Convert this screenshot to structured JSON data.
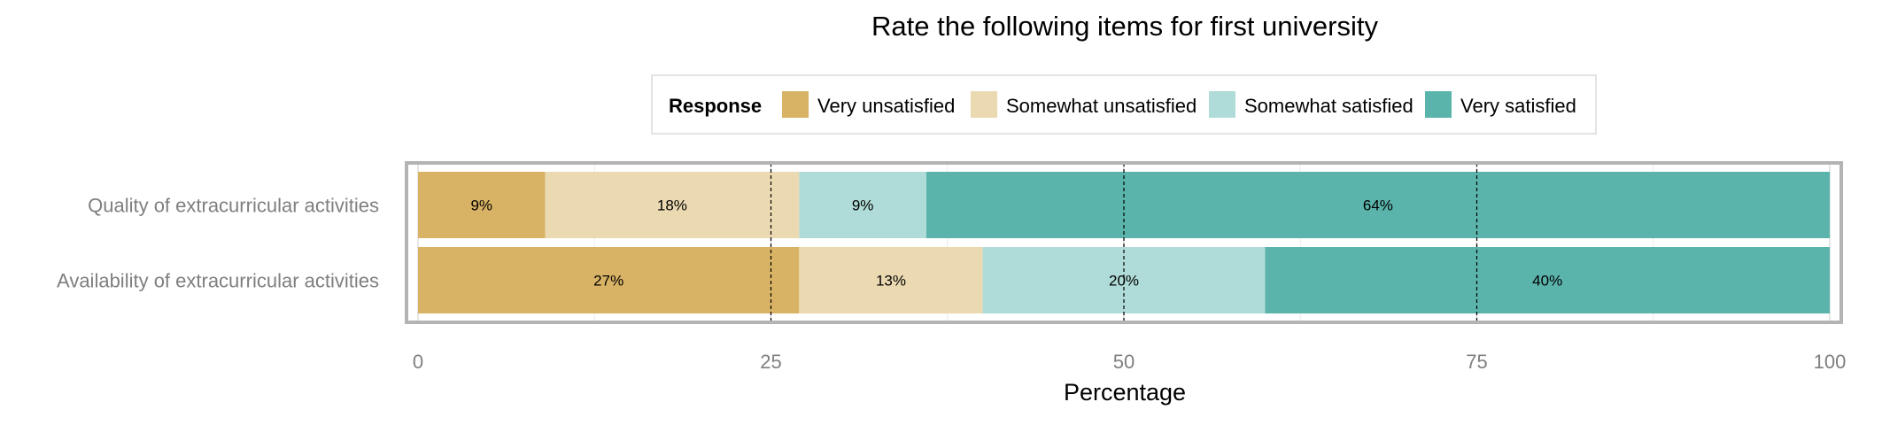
{
  "chart_data": {
    "type": "bar",
    "orientation": "horizontal",
    "stacked": true,
    "title": "Rate the following items for first university",
    "xlabel": "Percentage",
    "ylabel": "",
    "xlim": [
      0,
      100
    ],
    "xticks": [
      0,
      25,
      50,
      75,
      100
    ],
    "grid": true,
    "legend": {
      "title": "Response",
      "placement": "top",
      "entries": [
        "Very unsatisfied",
        "Somewhat unsatisfied",
        "Somewhat satisfied",
        "Very satisfied"
      ]
    },
    "categories": [
      "Quality of extracurricular activities",
      "Availability of extracurricular activities"
    ],
    "series": [
      {
        "name": "Very unsatisfied",
        "color": "#D9B365",
        "values": [
          9,
          27
        ],
        "labels": [
          "9%",
          "27%"
        ]
      },
      {
        "name": "Somewhat unsatisfied",
        "color": "#EBD9B2",
        "values": [
          18,
          13
        ],
        "labels": [
          "18%",
          "13%"
        ]
      },
      {
        "name": "Somewhat satisfied",
        "color": "#AFDCD8",
        "values": [
          9,
          20
        ],
        "labels": [
          "9%",
          "20%"
        ]
      },
      {
        "name": "Very satisfied",
        "color": "#5AB4AC",
        "values": [
          64,
          40
        ],
        "labels": [
          "64%",
          "40%"
        ]
      }
    ]
  }
}
